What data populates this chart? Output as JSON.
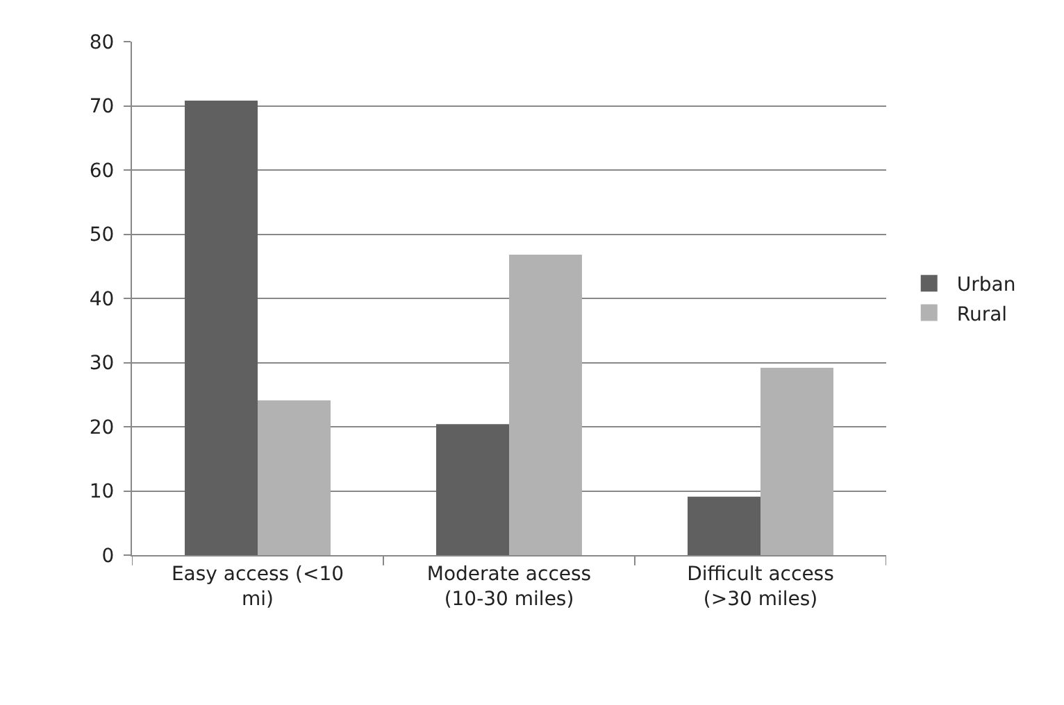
{
  "chart_data": {
    "type": "bar",
    "categories": [
      "Easy access (<10 mi)",
      "Moderate access (10-30 miles)",
      "Difficult access (>30 miles)"
    ],
    "series": [
      {
        "name": "Urban",
        "color": "#606060",
        "values": [
          70.8,
          20.4,
          9.1
        ]
      },
      {
        "name": "Rural",
        "color": "#b2b2b2",
        "values": [
          24.1,
          46.8,
          29.2
        ]
      }
    ],
    "ylim": [
      0,
      80
    ],
    "yticks": [
      0,
      10,
      20,
      30,
      40,
      50,
      60,
      70,
      80
    ],
    "grid": "y",
    "legend": "right"
  }
}
